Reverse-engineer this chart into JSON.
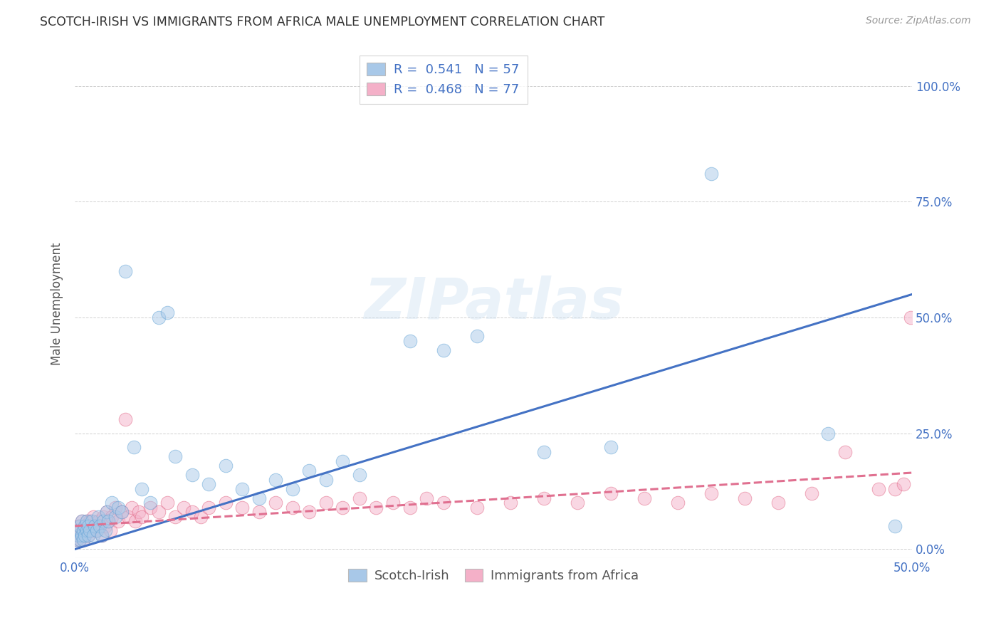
{
  "title": "SCOTCH-IRISH VS IMMIGRANTS FROM AFRICA MALE UNEMPLOYMENT CORRELATION CHART",
  "source": "Source: ZipAtlas.com",
  "ylabel": "Male Unemployment",
  "ytick_labels": [
    "0.0%",
    "25.0%",
    "50.0%",
    "75.0%",
    "100.0%"
  ],
  "ytick_values": [
    0,
    0.25,
    0.5,
    0.75,
    1.0
  ],
  "xmin": 0.0,
  "xmax": 0.5,
  "ymin": -0.02,
  "ymax": 1.08,
  "si_line_x0": 0.0,
  "si_line_y0": 0.0,
  "si_line_x1": 0.5,
  "si_line_y1": 0.55,
  "af_line_x0": 0.0,
  "af_line_y0": 0.05,
  "af_line_x1": 0.5,
  "af_line_y1": 0.165,
  "scotch_irish": {
    "color": "#a8c8e8",
    "edge_color": "#5a9fd4",
    "line_color": "#4472c4",
    "R": 0.541,
    "N": 57,
    "x": [
      0.001,
      0.002,
      0.002,
      0.003,
      0.003,
      0.004,
      0.004,
      0.005,
      0.005,
      0.006,
      0.006,
      0.007,
      0.007,
      0.008,
      0.008,
      0.009,
      0.01,
      0.011,
      0.012,
      0.013,
      0.014,
      0.015,
      0.016,
      0.017,
      0.018,
      0.019,
      0.02,
      0.022,
      0.024,
      0.026,
      0.028,
      0.03,
      0.035,
      0.04,
      0.045,
      0.05,
      0.055,
      0.06,
      0.07,
      0.08,
      0.09,
      0.1,
      0.11,
      0.12,
      0.13,
      0.14,
      0.15,
      0.16,
      0.17,
      0.2,
      0.22,
      0.24,
      0.28,
      0.32,
      0.38,
      0.45,
      0.49
    ],
    "y": [
      0.02,
      0.03,
      0.04,
      0.02,
      0.05,
      0.03,
      0.06,
      0.04,
      0.02,
      0.05,
      0.03,
      0.04,
      0.06,
      0.03,
      0.05,
      0.04,
      0.06,
      0.03,
      0.05,
      0.04,
      0.07,
      0.05,
      0.03,
      0.06,
      0.04,
      0.08,
      0.06,
      0.1,
      0.07,
      0.09,
      0.08,
      0.6,
      0.22,
      0.13,
      0.1,
      0.5,
      0.51,
      0.2,
      0.16,
      0.14,
      0.18,
      0.13,
      0.11,
      0.15,
      0.13,
      0.17,
      0.15,
      0.19,
      0.16,
      0.45,
      0.43,
      0.46,
      0.21,
      0.22,
      0.81,
      0.25,
      0.05
    ]
  },
  "africa": {
    "color": "#f4b0c8",
    "edge_color": "#e06080",
    "line_color": "#e07090",
    "line_style": "--",
    "R": 0.468,
    "N": 77,
    "x": [
      0.001,
      0.001,
      0.002,
      0.002,
      0.003,
      0.003,
      0.004,
      0.004,
      0.005,
      0.005,
      0.006,
      0.006,
      0.007,
      0.007,
      0.008,
      0.008,
      0.009,
      0.01,
      0.011,
      0.012,
      0.013,
      0.014,
      0.015,
      0.016,
      0.017,
      0.018,
      0.019,
      0.02,
      0.021,
      0.022,
      0.024,
      0.026,
      0.028,
      0.03,
      0.032,
      0.034,
      0.036,
      0.038,
      0.04,
      0.045,
      0.05,
      0.055,
      0.06,
      0.065,
      0.07,
      0.075,
      0.08,
      0.09,
      0.1,
      0.11,
      0.12,
      0.13,
      0.14,
      0.15,
      0.16,
      0.17,
      0.18,
      0.19,
      0.2,
      0.21,
      0.22,
      0.24,
      0.26,
      0.28,
      0.3,
      0.32,
      0.34,
      0.36,
      0.38,
      0.4,
      0.42,
      0.44,
      0.46,
      0.48,
      0.49,
      0.495,
      0.499
    ],
    "y": [
      0.02,
      0.04,
      0.03,
      0.05,
      0.02,
      0.04,
      0.03,
      0.06,
      0.04,
      0.02,
      0.05,
      0.03,
      0.06,
      0.04,
      0.05,
      0.03,
      0.06,
      0.04,
      0.07,
      0.05,
      0.04,
      0.06,
      0.05,
      0.03,
      0.07,
      0.05,
      0.08,
      0.06,
      0.04,
      0.07,
      0.09,
      0.06,
      0.08,
      0.28,
      0.07,
      0.09,
      0.06,
      0.08,
      0.07,
      0.09,
      0.08,
      0.1,
      0.07,
      0.09,
      0.08,
      0.07,
      0.09,
      0.1,
      0.09,
      0.08,
      0.1,
      0.09,
      0.08,
      0.1,
      0.09,
      0.11,
      0.09,
      0.1,
      0.09,
      0.11,
      0.1,
      0.09,
      0.1,
      0.11,
      0.1,
      0.12,
      0.11,
      0.1,
      0.12,
      0.11,
      0.1,
      0.12,
      0.21,
      0.13,
      0.13,
      0.14,
      0.5
    ]
  },
  "watermark": "ZIPatlas",
  "legend_box_color_si": "#a8c8e8",
  "legend_box_color_af": "#f4b0c8",
  "background_color": "#ffffff",
  "grid_color": "#d0d0d0"
}
